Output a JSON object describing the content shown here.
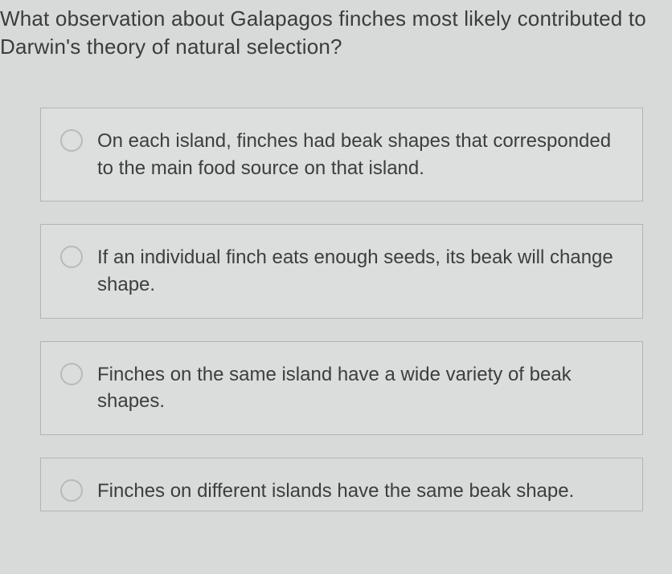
{
  "question": {
    "text_line1": "What observation about Galapagos finches most likely contributed to",
    "text_line2": "Darwin's theory of natural selection?"
  },
  "options": [
    {
      "text": "On each island, finches had beak shapes that corresponded to the main food source on that island."
    },
    {
      "text": "If an individual finch eats enough seeds, its beak will change shape."
    },
    {
      "text": "Finches on the same island have a wide variety of beak shapes."
    },
    {
      "text": "Finches on different islands have the same beak shape."
    }
  ],
  "styling": {
    "background_color": "#d8dad9",
    "option_border_color": "#b2b4b3",
    "option_background": "#dddfde",
    "radio_border_color": "#b8bab9",
    "text_color": "#3a3c3d",
    "question_fontsize": 26,
    "option_fontsize": 24
  }
}
